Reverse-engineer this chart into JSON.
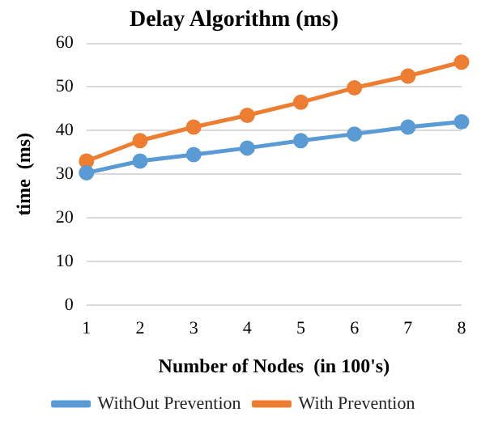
{
  "chart_data": {
    "type": "line",
    "title": "Delay Algorithm (ms)",
    "xlabel": "Number of Nodes  (in 100's)",
    "ylabel": "time  (ms)",
    "categories": [
      "1",
      "2",
      "3",
      "4",
      "5",
      "6",
      "7",
      "8"
    ],
    "series": [
      {
        "name": "WithOut Prevention",
        "color": "#5b9bd5",
        "values": [
          30.3,
          33,
          34.5,
          36,
          37.7,
          39.2,
          40.8,
          42
        ]
      },
      {
        "name": "With Prevention",
        "color": "#ed7d31",
        "values": [
          33,
          37.7,
          40.8,
          43.5,
          46.5,
          49.8,
          52.5,
          55.7
        ]
      }
    ],
    "ylim": [
      0,
      60
    ],
    "yticks": [
      0,
      10,
      20,
      30,
      40,
      50,
      60
    ],
    "grid": "y",
    "legend": "bottom",
    "marker": "circle",
    "line_style": "solid"
  }
}
